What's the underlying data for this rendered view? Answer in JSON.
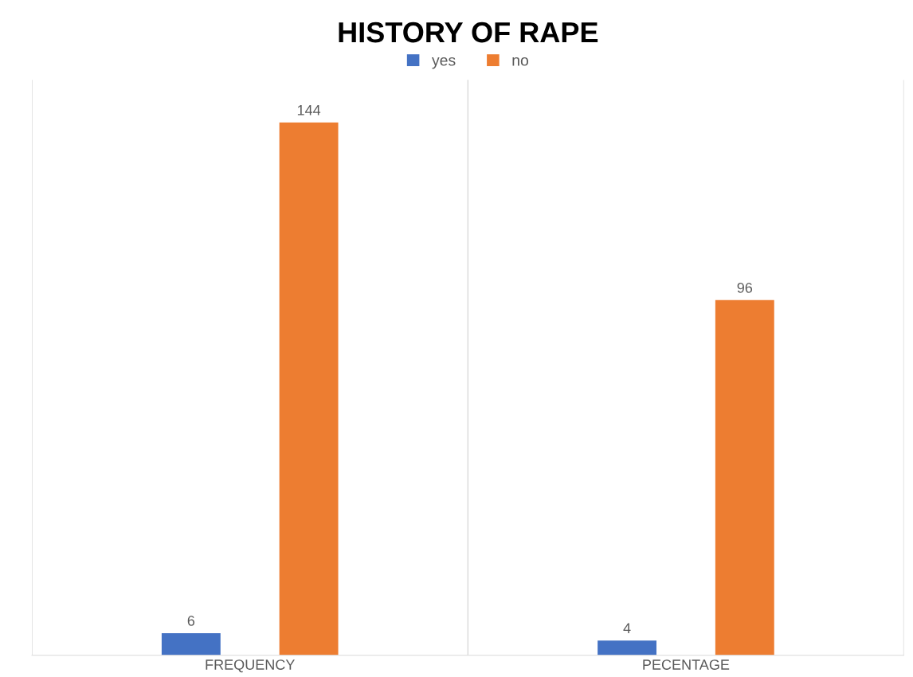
{
  "chart_data": {
    "type": "bar",
    "title": "HISTORY OF RAPE",
    "categories": [
      "FREQUENCY",
      "PECENTAGE"
    ],
    "series": [
      {
        "name": "yes",
        "color": "#4472c4",
        "values": [
          6,
          4
        ]
      },
      {
        "name": "no",
        "color": "#ed7d31",
        "values": [
          144,
          96
        ]
      }
    ],
    "tick_labels": "x",
    "data_labels": true,
    "grid": "x",
    "legend": "top"
  }
}
